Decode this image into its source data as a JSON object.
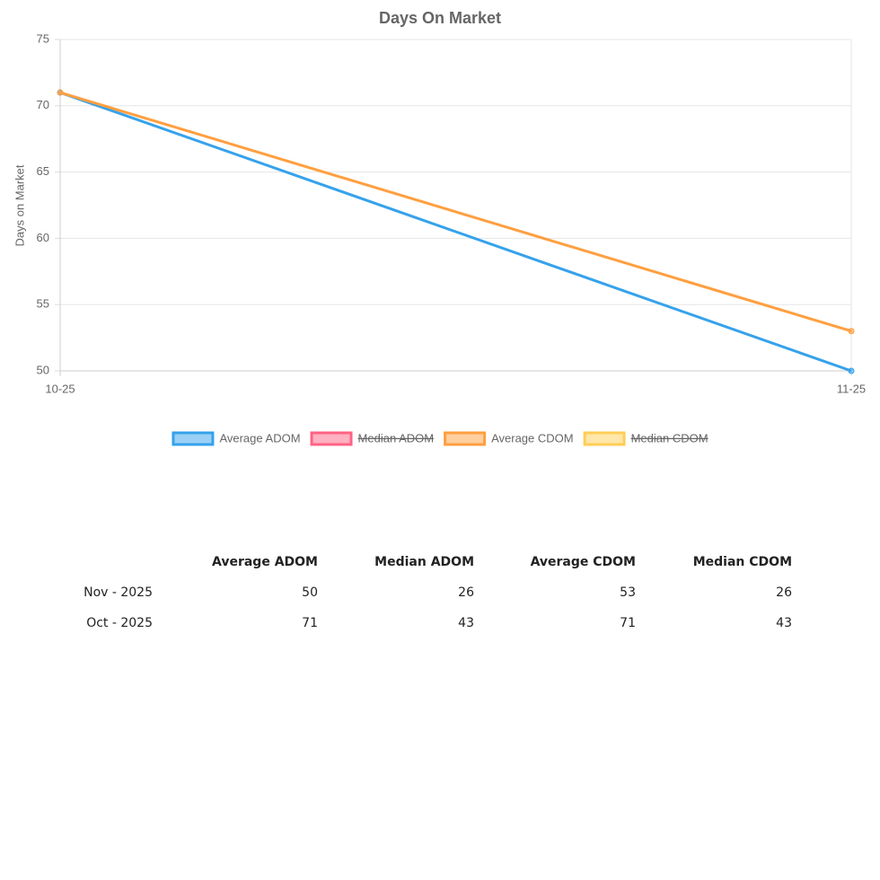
{
  "chart_data": {
    "type": "line",
    "title": "Days On Market",
    "y_label": "Days on Market",
    "categories": [
      "10-25",
      "11-25"
    ],
    "series": [
      {
        "name": "Average ADOM",
        "color": "#36a2eb",
        "values": [
          71,
          50
        ]
      },
      {
        "name": "Median ADOM",
        "color": "#ff6384",
        "hidden": true
      },
      {
        "name": "Average CDOM",
        "color": "#ff9f40",
        "values": [
          71,
          53
        ]
      },
      {
        "name": "Median CDOM",
        "color": "#ffcd56",
        "hidden": true
      }
    ],
    "ylim": [
      50,
      75
    ],
    "yticks": [
      50,
      55,
      60,
      65,
      70,
      75
    ],
    "grid": true,
    "legend": "bottom"
  },
  "table": {
    "columns": [
      "Average ADOM",
      "Median ADOM",
      "Average CDOM",
      "Median CDOM"
    ],
    "rows": [
      [
        "Nov - 2025",
        "50",
        "26",
        "53",
        "26"
      ],
      [
        "Oct - 2025",
        "71",
        "43",
        "71",
        "43"
      ]
    ]
  }
}
